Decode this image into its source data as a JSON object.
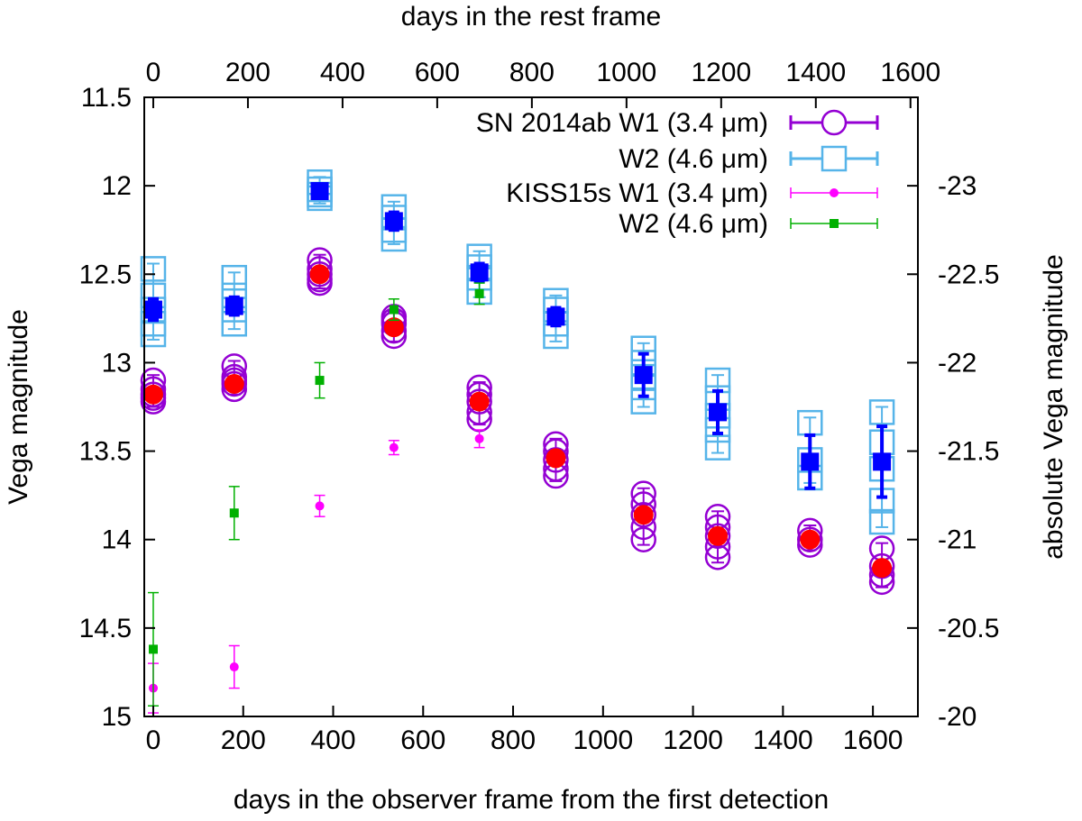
{
  "chart_data": {
    "type": "scatter",
    "x_bottom": {
      "label": "days in the observer frame from the first detection",
      "range": [
        -20,
        1700
      ],
      "ticks": [
        0,
        200,
        400,
        600,
        800,
        1000,
        1200,
        1400,
        1600
      ]
    },
    "x_top": {
      "label": "days in the rest frame",
      "ticks": [
        0,
        200,
        400,
        600,
        800,
        1000,
        1200,
        1400,
        1600
      ],
      "scale_factor": 0.9504
    },
    "y_left": {
      "label": "Vega magnitude",
      "range": [
        15,
        11.5
      ],
      "ticks": [
        11.5,
        12,
        12.5,
        13,
        13.5,
        14,
        14.5,
        15
      ],
      "inverted": true
    },
    "y_right": {
      "label": "absolute Vega magnitude",
      "ticks": [
        -23,
        -22.5,
        -22,
        -21.5,
        -21,
        -20.5,
        -20
      ],
      "offset": -35.0
    },
    "legend": {
      "position": "top-right",
      "entries": [
        {
          "label": "SN 2014ab W1 (3.4 μm)",
          "series": "sn_w1"
        },
        {
          "label": "W2 (4.6 μm)",
          "series": "sn_w2"
        },
        {
          "label": "KISS15s W1 (3.4 μm)",
          "series": "kiss_w1"
        },
        {
          "label": "W2 (4.6 μm)",
          "series": "kiss_w2"
        }
      ]
    },
    "colors": {
      "sn_w1": "#9400d3",
      "sn_w2": "#56b4e9",
      "sn_w1_mean": "#ff0000",
      "sn_w2_mean": "#0000ff",
      "kiss_w1": "#ff00ff",
      "kiss_w2": "#00b000"
    },
    "series": [
      {
        "name": "sn_w1",
        "marker": "open-circle",
        "epochs": [
          {
            "x": 0,
            "y": [
              13.1,
              13.15,
              13.2,
              13.22,
              13.18
            ]
          },
          {
            "x": 180,
            "y": [
              13.02,
              13.08,
              13.12,
              13.15,
              13.1
            ]
          },
          {
            "x": 370,
            "y": [
              12.42,
              12.47,
              12.5,
              12.53,
              12.55
            ]
          },
          {
            "x": 535,
            "y": [
              12.74,
              12.78,
              12.82,
              12.85,
              12.76
            ]
          },
          {
            "x": 725,
            "y": [
              13.14,
              13.18,
              13.22,
              13.28,
              13.32
            ]
          },
          {
            "x": 895,
            "y": [
              13.46,
              13.5,
              13.55,
              13.6,
              13.64
            ]
          },
          {
            "x": 1090,
            "y": [
              13.74,
              13.8,
              13.86,
              13.93,
              14.0
            ]
          },
          {
            "x": 1255,
            "y": [
              13.87,
              13.93,
              13.98,
              14.04,
              14.1
            ]
          },
          {
            "x": 1460,
            "y": [
              13.95,
              14.0,
              14.03
            ]
          },
          {
            "x": 1620,
            "y": [
              14.05,
              14.15,
              14.2,
              14.24
            ]
          }
        ]
      },
      {
        "name": "sn_w1_mean",
        "marker": "filled-circle",
        "points": [
          {
            "x": 0,
            "y": 13.18
          },
          {
            "x": 180,
            "y": 13.12
          },
          {
            "x": 370,
            "y": 12.5
          },
          {
            "x": 535,
            "y": 12.8
          },
          {
            "x": 725,
            "y": 13.22
          },
          {
            "x": 895,
            "y": 13.54
          },
          {
            "x": 1090,
            "y": 13.86
          },
          {
            "x": 1255,
            "y": 13.98
          },
          {
            "x": 1460,
            "y": 14.0
          },
          {
            "x": 1620,
            "y": 14.16
          }
        ]
      },
      {
        "name": "sn_w2",
        "marker": "open-square",
        "epochs": [
          {
            "x": 0,
            "y": [
              12.47,
              12.62,
              12.7,
              12.78,
              12.84
            ]
          },
          {
            "x": 180,
            "y": [
              12.52,
              12.62,
              12.7,
              12.78
            ]
          },
          {
            "x": 370,
            "y": [
              11.98,
              12.02,
              12.05,
              12.07
            ]
          },
          {
            "x": 535,
            "y": [
              12.12,
              12.18,
              12.25,
              12.3
            ]
          },
          {
            "x": 725,
            "y": [
              12.4,
              12.46,
              12.52,
              12.6
            ]
          },
          {
            "x": 895,
            "y": [
              12.65,
              12.7,
              12.78,
              12.85
            ]
          },
          {
            "x": 1090,
            "y": [
              12.92,
              13.0,
              13.08,
              13.14,
              13.22
            ]
          },
          {
            "x": 1255,
            "y": [
              13.1,
              13.2,
              13.3,
              13.38,
              13.48
            ]
          },
          {
            "x": 1460,
            "y": [
              13.34,
              13.55,
              13.65
            ]
          },
          {
            "x": 1620,
            "y": [
              13.28,
              13.45,
              13.6,
              13.78,
              13.9
            ]
          }
        ]
      },
      {
        "name": "sn_w2_mean",
        "marker": "filled-square",
        "points": [
          {
            "x": 0,
            "y": 12.7,
            "err": 0.06
          },
          {
            "x": 180,
            "y": 12.68,
            "err": 0.05
          },
          {
            "x": 370,
            "y": 12.03,
            "err": 0.04
          },
          {
            "x": 535,
            "y": 12.2,
            "err": 0.05
          },
          {
            "x": 725,
            "y": 12.49,
            "err": 0.05
          },
          {
            "x": 895,
            "y": 12.74,
            "err": 0.05
          },
          {
            "x": 1090,
            "y": 13.07,
            "err": 0.12
          },
          {
            "x": 1255,
            "y": 13.28,
            "err": 0.12
          },
          {
            "x": 1460,
            "y": 13.56,
            "err": 0.15
          },
          {
            "x": 1620,
            "y": 13.56,
            "err": 0.2
          }
        ]
      },
      {
        "name": "kiss_w1",
        "marker": "small-filled-circle",
        "points": [
          {
            "x": 0,
            "y": 14.84,
            "err": 0.14
          },
          {
            "x": 180,
            "y": 14.72,
            "err": 0.12
          },
          {
            "x": 370,
            "y": 13.81,
            "err": 0.06
          },
          {
            "x": 535,
            "y": 13.48,
            "err": 0.04
          },
          {
            "x": 725,
            "y": 13.43,
            "err": 0.05
          }
        ]
      },
      {
        "name": "kiss_w2",
        "marker": "small-filled-square",
        "points": [
          {
            "x": 0,
            "y": 14.62,
            "err": 0.32
          },
          {
            "x": 180,
            "y": 13.85,
            "err": 0.15
          },
          {
            "x": 370,
            "y": 13.1,
            "err": 0.1
          },
          {
            "x": 535,
            "y": 12.7,
            "err": 0.06
          },
          {
            "x": 725,
            "y": 12.61,
            "err": 0.06
          }
        ]
      }
    ]
  }
}
